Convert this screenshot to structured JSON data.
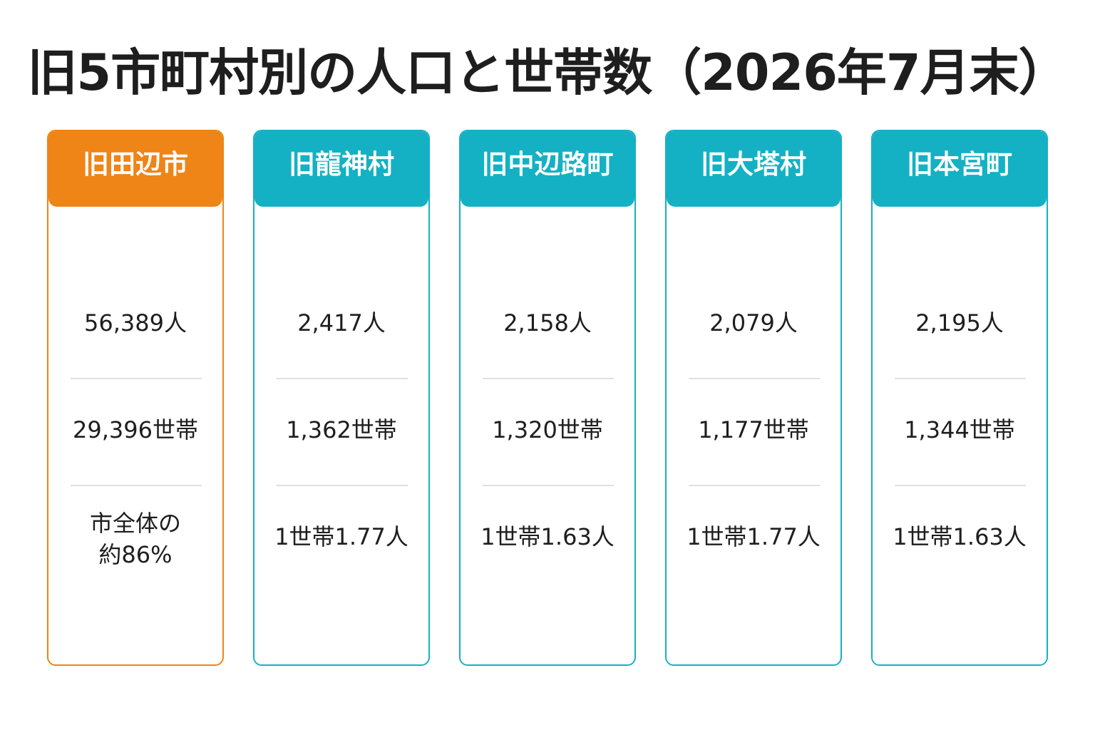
{
  "title": "旧5市町村別の人口と世帯数（2026年7月末）",
  "colors": {
    "highlight": "#ef8417",
    "accent": "#14b1c4",
    "text": "#1e1e1e",
    "divider": "#e0e0e0"
  },
  "regions": [
    {
      "name": "旧田辺市",
      "population": "56,389人",
      "households": "29,396世帯",
      "note_line1": "市全体の",
      "note_line2": "約86%"
    },
    {
      "name": "旧龍神村",
      "population": "2,417人",
      "households": "1,362世帯",
      "ratio": "1世帯1.77人"
    },
    {
      "name": "旧中辺路町",
      "population": "2,158人",
      "households": "1,320世帯",
      "ratio": "1世帯1.63人"
    },
    {
      "name": "旧大塔村",
      "population": "2,079人",
      "households": "1,177世帯",
      "ratio": "1世帯1.77人"
    },
    {
      "name": "旧本宮町",
      "population": "2,195人",
      "households": "1,344世帯",
      "ratio": "1世帯1.63人"
    }
  ]
}
